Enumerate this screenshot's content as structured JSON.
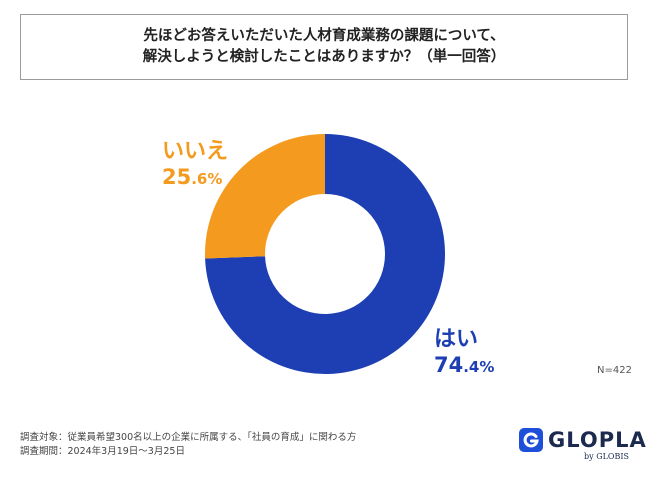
{
  "question": {
    "line1": "先ほどお答えいただいた人材育成業務の課題について、",
    "line2": "解決しようと検討したことはありますか？（単一回答）"
  },
  "chart_data": {
    "type": "pie",
    "donut": true,
    "categories": [
      "はい",
      "いいえ"
    ],
    "values": [
      74.4,
      25.6
    ],
    "value_labels": [
      {
        "int": "74",
        "dec": ".4%"
      },
      {
        "int": "25",
        "dec": ".6%"
      }
    ],
    "colors": [
      "#1D3FB3",
      "#F49A1E"
    ],
    "start_angle_deg": 0,
    "direction": "clockwise"
  },
  "n_label": "N=422",
  "footer": {
    "line1": "調査対象：従業員希望300名以上の企業に所属する、「社員の育成」に関わる方",
    "line2": "調査期間：2024年3月19日〜3月25日"
  },
  "logo": {
    "text": "GLOPLA",
    "sub": "by GLOBIS",
    "color": "#1D4FD8"
  }
}
